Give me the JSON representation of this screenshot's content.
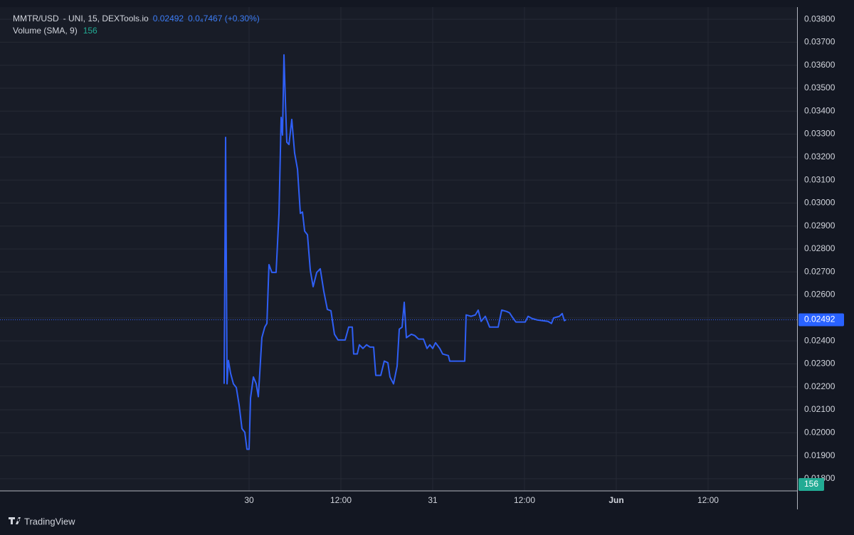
{
  "header": {
    "symbol": "MMTR/USD",
    "source": "- UNI, 15, DEXTools.io",
    "price": "0.02492",
    "change": "0.0₄7467 (+0.30%)",
    "volume_label": "Volume (SMA, 9)",
    "volume_value": "156"
  },
  "chart_data": {
    "type": "line",
    "color": "#2f5ff5",
    "grid": true,
    "x": [
      -3.26,
      -3.07,
      -2.88,
      -2.7,
      -2.42,
      -2.05,
      -1.67,
      -1.3,
      -0.93,
      -0.56,
      -0.28,
      0,
      0.19,
      0.56,
      0.93,
      1.21,
      1.67,
      2.05,
      2.33,
      2.6,
      2.98,
      3.53,
      3.91,
      4.19,
      4.37,
      4.56,
      4.74,
      4.93,
      5.21,
      5.58,
      5.95,
      6.33,
      6.7,
      6.98,
      7.26,
      7.63,
      8.0,
      8.37,
      8.84,
      9.3,
      9.77,
      10.23,
      10.7,
      11.16,
      11.63,
      12.56,
      13.02,
      13.49,
      13.67,
      14.14,
      14.42,
      14.88,
      15.35,
      15.81,
      16.28,
      16.56,
      17.21,
      17.67,
      18.14,
      18.42,
      18.88,
      19.35,
      19.63,
      20.0,
      20.28,
      20.56,
      21.21,
      21.67,
      22.14,
      22.79,
      23.26,
      23.63,
      24.0,
      24.37,
      24.93,
      25.3,
      26.05,
      26.23,
      27.44,
      28.19,
      28.37,
      29.02,
      29.58,
      29.95,
      30.33,
      30.88,
      31.44,
      32.19,
      32.56,
      33.02,
      33.67,
      34.05,
      34.42,
      34.88,
      36.09,
      36.47,
      37.02,
      37.67,
      39.07,
      39.53,
      39.81,
      40.56,
      40.93,
      41.21,
      41.4
    ],
    "values": [
      0.02213,
      0.03286,
      0.02213,
      0.02315,
      0.02259,
      0.02213,
      0.02197,
      0.0212,
      0.02018,
      0.02002,
      0.01928,
      0.01928,
      0.02151,
      0.02243,
      0.02213,
      0.02157,
      0.02414,
      0.0246,
      0.02476,
      0.02732,
      0.02698,
      0.02698,
      0.02955,
      0.03373,
      0.03296,
      0.03645,
      0.0345,
      0.03265,
      0.03255,
      0.03364,
      0.03218,
      0.03147,
      0.02955,
      0.02961,
      0.02878,
      0.02862,
      0.02708,
      0.02636,
      0.02698,
      0.02714,
      0.02615,
      0.02537,
      0.02531,
      0.02429,
      0.02404,
      0.02404,
      0.0246,
      0.0246,
      0.02343,
      0.02343,
      0.02383,
      0.02367,
      0.02383,
      0.02373,
      0.02373,
      0.0225,
      0.0225,
      0.02312,
      0.02305,
      0.02243,
      0.02213,
      0.0229,
      0.02451,
      0.0246,
      0.02568,
      0.02414,
      0.02429,
      0.02423,
      0.02408,
      0.02408,
      0.02367,
      0.02383,
      0.02367,
      0.02392,
      0.02367,
      0.02343,
      0.02336,
      0.02312,
      0.02312,
      0.02312,
      0.02513,
      0.02507,
      0.02513,
      0.02534,
      0.02485,
      0.02507,
      0.0246,
      0.0246,
      0.0246,
      0.02534,
      0.02528,
      0.02522,
      0.02503,
      0.02482,
      0.02482,
      0.02507,
      0.02497,
      0.02491,
      0.02485,
      0.02476,
      0.025,
      0.02507,
      0.02519,
      0.02488,
      0.02492
    ],
    "xlim": [
      -32.56,
      71.63
    ],
    "xticks": [
      {
        "value": 0,
        "label": "30"
      },
      {
        "value": 12,
        "label": "12:00"
      },
      {
        "value": 24,
        "label": "31"
      },
      {
        "value": 36,
        "label": "12:00"
      },
      {
        "value": 48,
        "label": "Jun"
      },
      {
        "value": 60,
        "label": "12:00"
      }
    ],
    "ylim": [
      0.01747,
      0.03853
    ],
    "yticks": [
      {
        "value": 0.018,
        "label": "0.01800"
      },
      {
        "value": 0.019,
        "label": "0.01900"
      },
      {
        "value": 0.02,
        "label": "0.02000"
      },
      {
        "value": 0.021,
        "label": "0.02100"
      },
      {
        "value": 0.022,
        "label": "0.02200"
      },
      {
        "value": 0.023,
        "label": "0.02300"
      },
      {
        "value": 0.024,
        "label": "0.02400"
      },
      {
        "value": 0.025,
        "label": "0.02500"
      },
      {
        "value": 0.026,
        "label": "0.02600"
      },
      {
        "value": 0.027,
        "label": "0.02700"
      },
      {
        "value": 0.028,
        "label": "0.02800"
      },
      {
        "value": 0.029,
        "label": "0.02900"
      },
      {
        "value": 0.03,
        "label": "0.03000"
      },
      {
        "value": 0.031,
        "label": "0.03100"
      },
      {
        "value": 0.032,
        "label": "0.03200"
      },
      {
        "value": 0.033,
        "label": "0.03300"
      },
      {
        "value": 0.034,
        "label": "0.03400"
      },
      {
        "value": 0.035,
        "label": "0.03500"
      },
      {
        "value": 0.036,
        "label": "0.03600"
      },
      {
        "value": 0.037,
        "label": "0.03700"
      },
      {
        "value": 0.038,
        "label": "0.03800"
      }
    ],
    "last_value": {
      "value": 0.02492,
      "label": "0.02492"
    }
  },
  "footer": {
    "brand": "TradingView"
  }
}
